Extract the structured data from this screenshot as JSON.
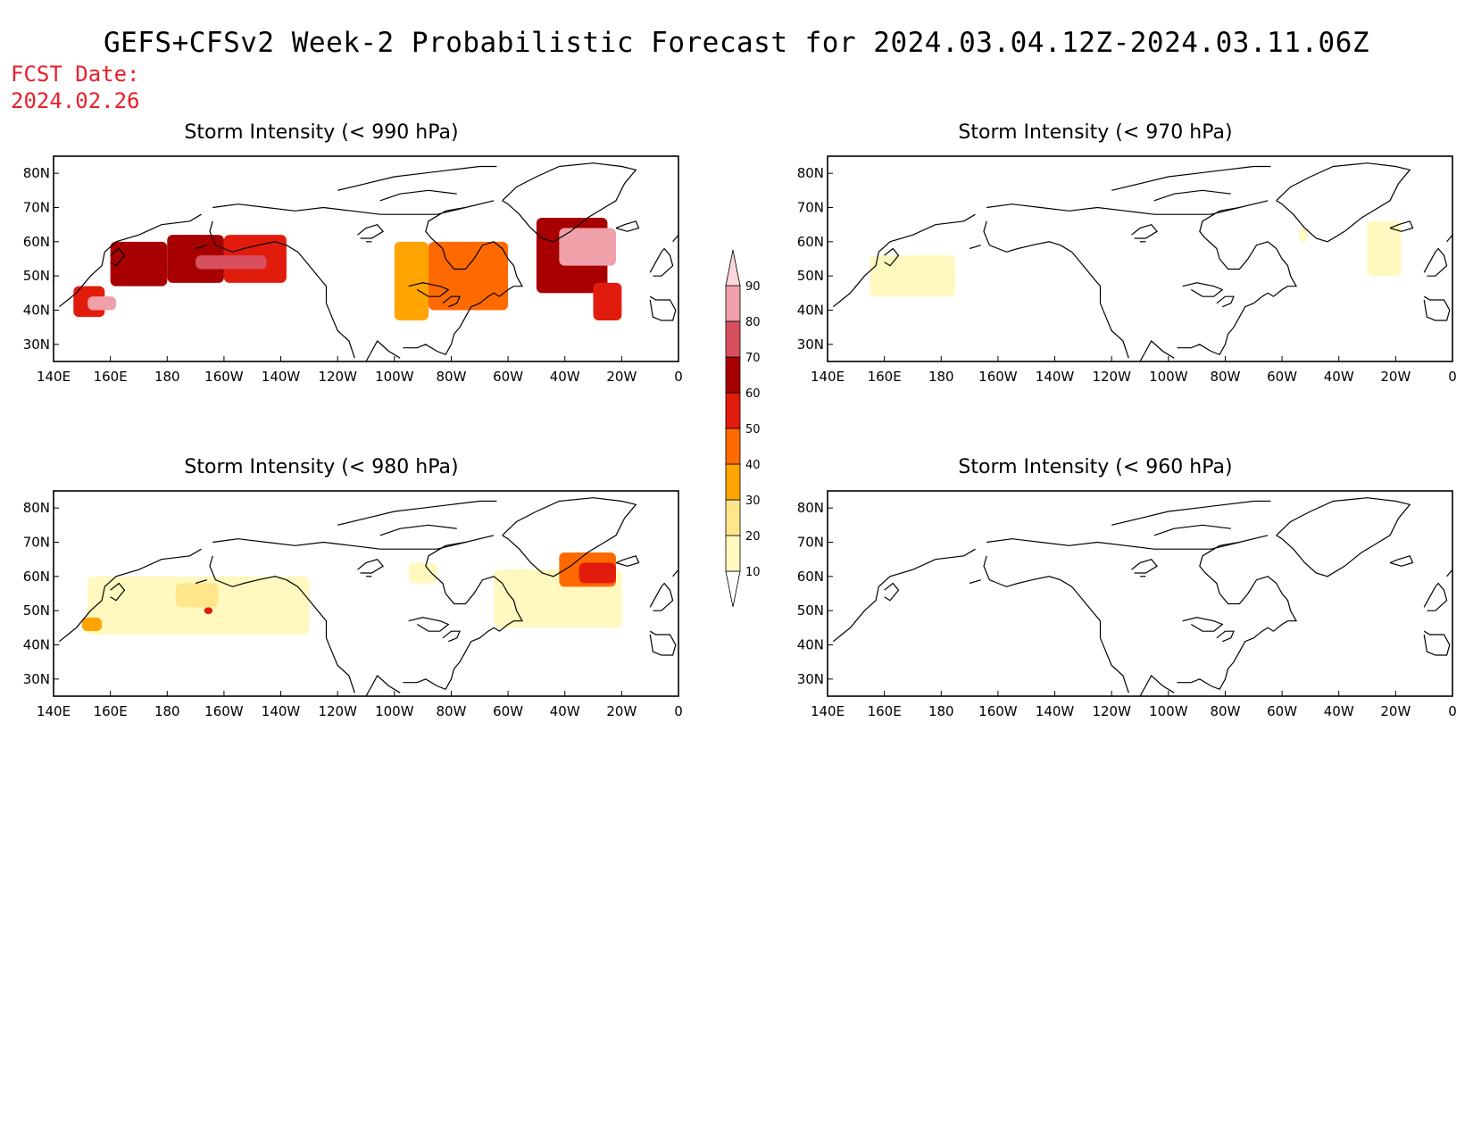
{
  "title": "GEFS+CFSv2 Week-2 Probabilistic Forecast for 2024.03.04.12Z-2024.03.11.06Z",
  "fcst_date": {
    "label": "FCST Date:",
    "value": "2024.02.26"
  },
  "colors": {
    "title_text": "#000000",
    "fcst_date_text": "#e8202a",
    "bins": [
      "#fff9c0",
      "#ffe68a",
      "#ffa400",
      "#ff6a00",
      "#e21c0c",
      "#a80000",
      "#d85060",
      "#f0a0a8",
      "#fcd8dc"
    ]
  },
  "colorbar": {
    "levels": [
      10,
      20,
      30,
      40,
      50,
      60,
      70,
      80,
      90
    ]
  },
  "axes": {
    "x_ticks": [
      "140E",
      "160E",
      "180",
      "160W",
      "140W",
      "120W",
      "100W",
      "80W",
      "60W",
      "40W",
      "20W",
      "0"
    ],
    "y_ticks": [
      "30N",
      "40N",
      "50N",
      "60N",
      "70N",
      "80N"
    ]
  },
  "chart_data": [
    {
      "type": "heatmap",
      "title": "Storm Intensity (< 990 hPa)",
      "threshold_hpa": 990,
      "xlim_lon": [
        140,
        360
      ],
      "ylim_lat": [
        25,
        85
      ],
      "regions": [
        {
          "lon": [
            147,
            158
          ],
          "lat": [
            38,
            47
          ],
          "prob": 50
        },
        {
          "lon": [
            160,
            180
          ],
          "lat": [
            47,
            60
          ],
          "prob": 60
        },
        {
          "lon": [
            180,
            200
          ],
          "lat": [
            48,
            62
          ],
          "prob": 60
        },
        {
          "lon": [
            200,
            222
          ],
          "lat": [
            48,
            62
          ],
          "prob": 55
        },
        {
          "lon": [
            152,
            162
          ],
          "lat": [
            40,
            44
          ],
          "prob": 80
        },
        {
          "lon": [
            190,
            215
          ],
          "lat": [
            52,
            56
          ],
          "prob": 75
        },
        {
          "lon": [
            260,
            272
          ],
          "lat": [
            37,
            60
          ],
          "prob": 30
        },
        {
          "lon": [
            272,
            300
          ],
          "lat": [
            40,
            60
          ],
          "prob": 45
        },
        {
          "lon": [
            310,
            335
          ],
          "lat": [
            45,
            67
          ],
          "prob": 65
        },
        {
          "lon": [
            318,
            338
          ],
          "lat": [
            53,
            64
          ],
          "prob": 85
        },
        {
          "lon": [
            330,
            340
          ],
          "lat": [
            37,
            48
          ],
          "prob": 55
        }
      ]
    },
    {
      "type": "heatmap",
      "title": "Storm Intensity (< 970 hPa)",
      "threshold_hpa": 970,
      "xlim_lon": [
        140,
        360
      ],
      "ylim_lat": [
        25,
        85
      ],
      "regions": [
        {
          "lon": [
            155,
            185
          ],
          "lat": [
            44,
            56
          ],
          "prob": 10
        },
        {
          "lon": [
            330,
            342
          ],
          "lat": [
            50,
            66
          ],
          "prob": 15
        },
        {
          "lon": [
            306,
            309
          ],
          "lat": [
            60,
            64
          ],
          "prob": 10
        }
      ]
    },
    {
      "type": "heatmap",
      "title": "Storm Intensity (< 980 hPa)",
      "threshold_hpa": 980,
      "xlim_lon": [
        140,
        360
      ],
      "ylim_lat": [
        25,
        85
      ],
      "regions": [
        {
          "lon": [
            152,
            230
          ],
          "lat": [
            43,
            60
          ],
          "prob": 15
        },
        {
          "lon": [
            150,
            157
          ],
          "lat": [
            44,
            48
          ],
          "prob": 35
        },
        {
          "lon": [
            183,
            198
          ],
          "lat": [
            51,
            58
          ],
          "prob": 25
        },
        {
          "lon": [
            193,
            196
          ],
          "lat": [
            49,
            51
          ],
          "prob": 50
        },
        {
          "lon": [
            265,
            275
          ],
          "lat": [
            58,
            64
          ],
          "prob": 10
        },
        {
          "lon": [
            295,
            340
          ],
          "lat": [
            45,
            62
          ],
          "prob": 15
        },
        {
          "lon": [
            318,
            338
          ],
          "lat": [
            57,
            67
          ],
          "prob": 40
        },
        {
          "lon": [
            325,
            338
          ],
          "lat": [
            58,
            64
          ],
          "prob": 55
        }
      ]
    },
    {
      "type": "heatmap",
      "title": "Storm Intensity (< 960 hPa)",
      "threshold_hpa": 960,
      "xlim_lon": [
        140,
        360
      ],
      "ylim_lat": [
        25,
        85
      ],
      "regions": []
    }
  ]
}
